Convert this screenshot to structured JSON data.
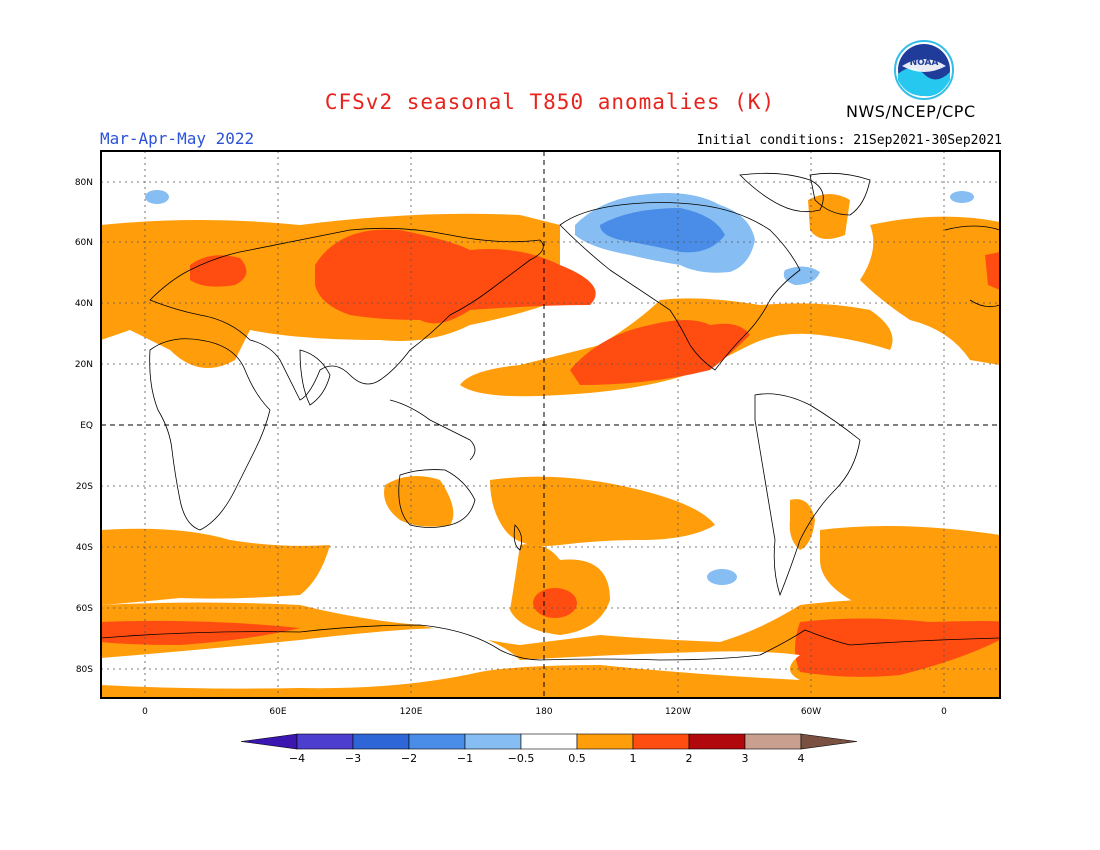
{
  "header": {
    "title": "CFSv2 seasonal T850 anomalies (K)",
    "period": "Mar-Apr-May 2022",
    "initial_conditions": "Initial conditions: 21Sep2021-30Sep2021",
    "agency": "NWS/NCEP/CPC",
    "logo_text": "NOAA"
  },
  "map": {
    "lat_labels": [
      "80N",
      "60N",
      "40N",
      "20N",
      "EQ",
      "20S",
      "40S",
      "60S",
      "80S"
    ],
    "lon_labels": [
      "0",
      "60E",
      "120E",
      "180",
      "120W",
      "60W",
      "0"
    ]
  },
  "colorbar": {
    "labels": [
      "-4",
      "-3",
      "-2",
      "-1",
      "-0.5",
      "0.5",
      "1",
      "2",
      "3",
      "4"
    ],
    "colors": [
      "#3c16b0",
      "#4c3fd0",
      "#2e66d8",
      "#4a8de8",
      "#86bdf2",
      "#ffffff",
      "#ff9d0a",
      "#ff4d12",
      "#b0080c",
      "#c9a090",
      "#7a5040"
    ]
  },
  "colors": {
    "title": "#e8231c",
    "period": "#2c52d8",
    "light_orange": "#ff9d0a",
    "dark_orange": "#ff4d12",
    "light_blue": "#86bdf2",
    "mid_blue": "#4a8de8"
  }
}
